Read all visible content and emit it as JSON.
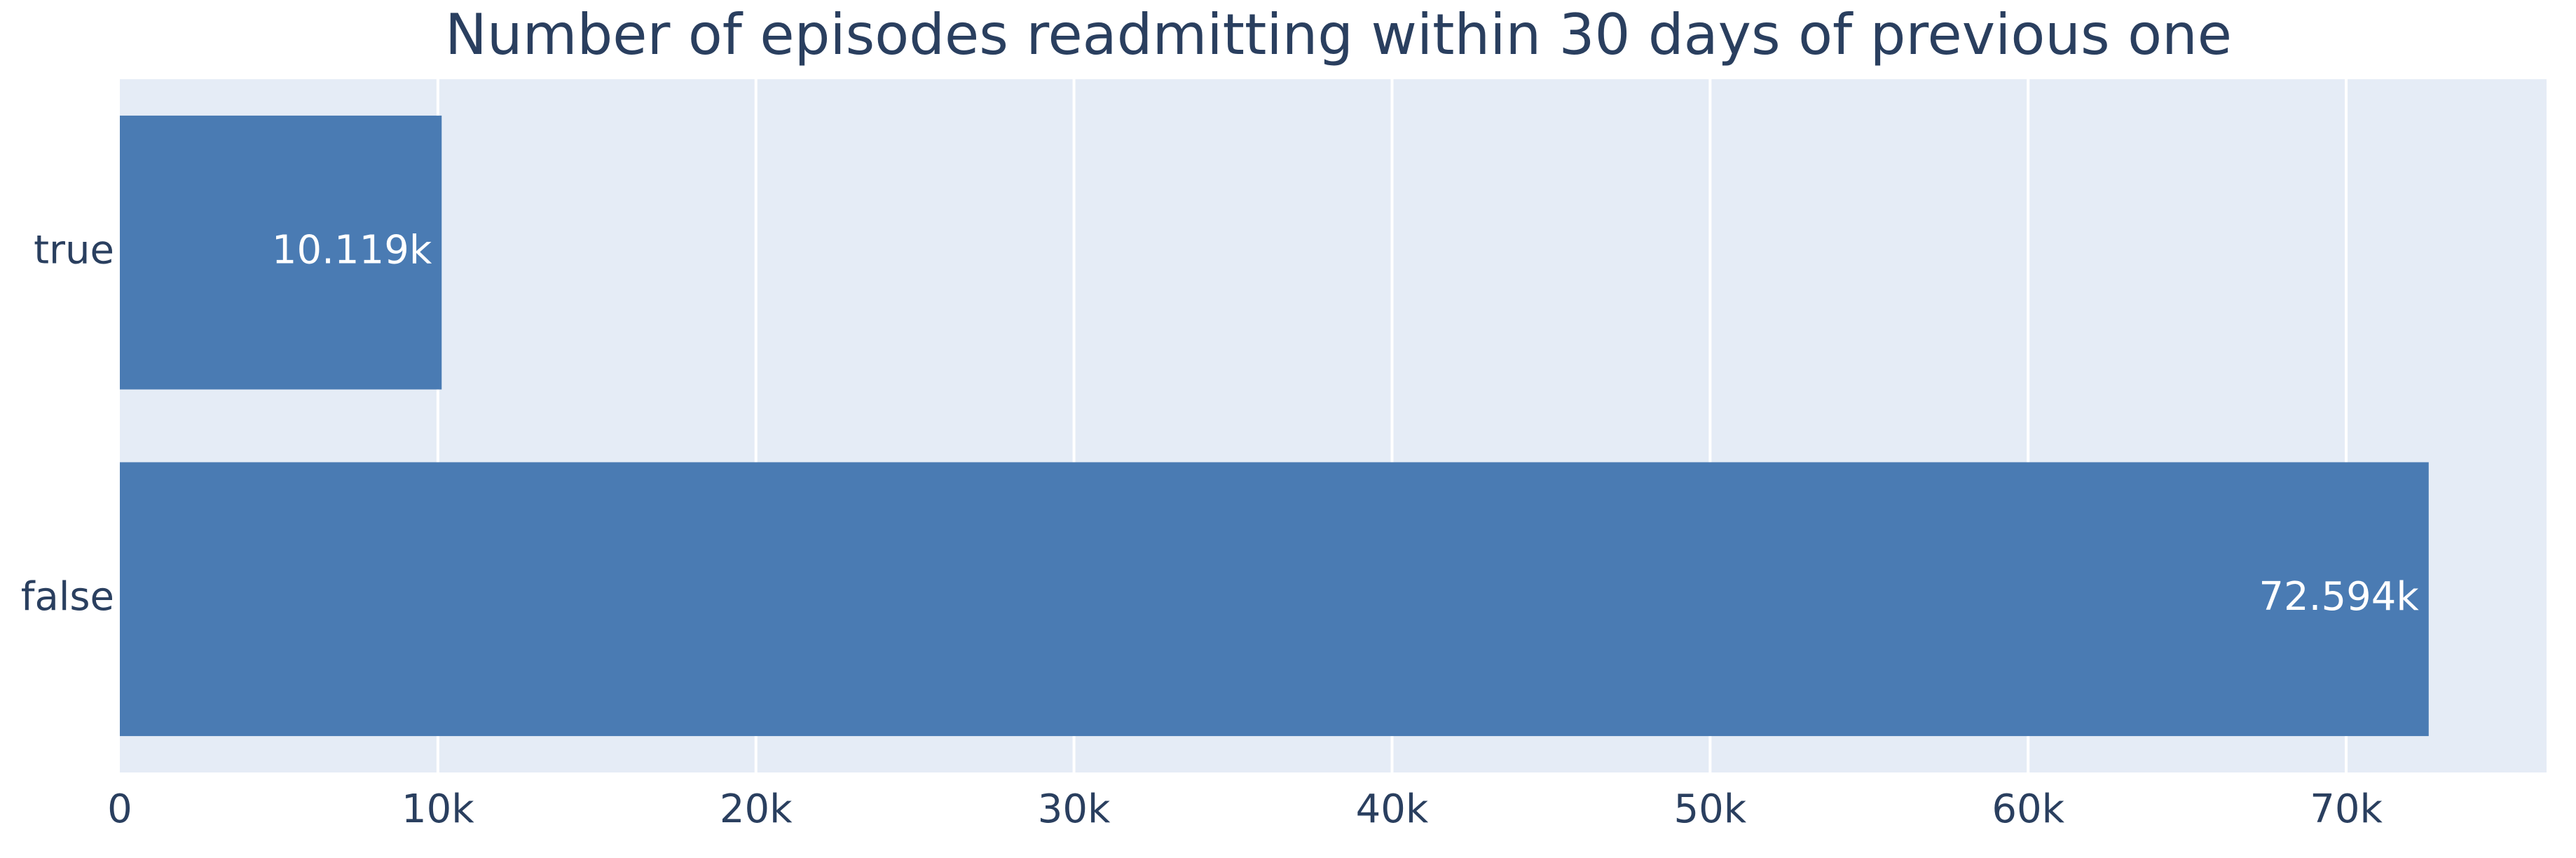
{
  "chart_data": {
    "type": "hbar",
    "title": "Number of episodes readmitting within 30 days of previous one",
    "categories": [
      "true",
      "false"
    ],
    "values": [
      10119,
      72594
    ],
    "value_labels": [
      "10.119k",
      "72.594k"
    ],
    "color": "#4a7bb3",
    "xlim": [
      0,
      76300
    ],
    "xticks": [
      0,
      {
        "value": 10000,
        "label": "10k"
      },
      {
        "value": 20000,
        "label": "20k"
      },
      {
        "value": 30000,
        "label": "30k"
      },
      {
        "value": 40000,
        "label": "40k"
      },
      {
        "value": 50000,
        "label": "50k"
      },
      {
        "value": 60000,
        "label": "60k"
      },
      {
        "value": 70000,
        "label": "70k"
      }
    ],
    "grid": true
  }
}
